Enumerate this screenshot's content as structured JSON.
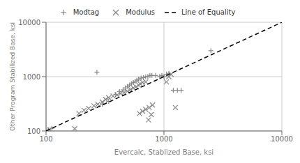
{
  "chart_data": {
    "type": "scatter",
    "xlabel": "Evercalc, Stablized Base, ksi",
    "ylabel": "Other Program Stabilized Base, ksi",
    "log": true,
    "grid": true,
    "legend": "top",
    "xlim": [
      100,
      10000
    ],
    "ylim": [
      100,
      10000
    ],
    "xticks": [
      100,
      1000,
      10000
    ],
    "yticks": [
      100,
      1000,
      10000
    ],
    "series": [
      {
        "name": "Modtag",
        "type": "scatter",
        "marker": "plus",
        "color": "#888888",
        "x": [
          105,
          112,
          270,
          300,
          340,
          390,
          420,
          450,
          470,
          490,
          510,
          530,
          550,
          570,
          590,
          610,
          640,
          670,
          700,
          730,
          760,
          790,
          850,
          920,
          960,
          1000,
          1050,
          1100,
          1200,
          1300,
          1400,
          2500
        ],
        "values": [
          105,
          112,
          1200,
          310,
          350,
          470,
          530,
          570,
          620,
          660,
          700,
          740,
          780,
          820,
          860,
          900,
          940,
          960,
          990,
          1000,
          1050,
          1050,
          1050,
          1000,
          1050,
          1000,
          1100,
          1150,
          560,
          560,
          560,
          3000
        ]
      },
      {
        "name": "Modulus",
        "type": "scatter",
        "marker": "cross",
        "color": "#888888",
        "x": [
          107,
          175,
          190,
          210,
          230,
          255,
          275,
          300,
          320,
          340,
          370,
          400,
          430,
          460,
          490,
          520,
          550,
          580,
          610,
          630,
          660,
          700,
          740,
          780,
          620,
          660,
          700,
          750,
          800,
          1050,
          1100,
          1150,
          1250
        ],
        "values": [
          105,
          110,
          210,
          240,
          260,
          290,
          310,
          340,
          380,
          410,
          440,
          460,
          490,
          510,
          540,
          580,
          620,
          650,
          700,
          730,
          780,
          800,
          160,
          200,
          210,
          230,
          250,
          270,
          300,
          800,
          1000,
          1100,
          270
        ]
      },
      {
        "name": "Line of Equality",
        "type": "line",
        "line_style": "dashed",
        "color": "#000000",
        "x": [
          100,
          10000
        ],
        "values": [
          100,
          10000
        ]
      }
    ]
  }
}
